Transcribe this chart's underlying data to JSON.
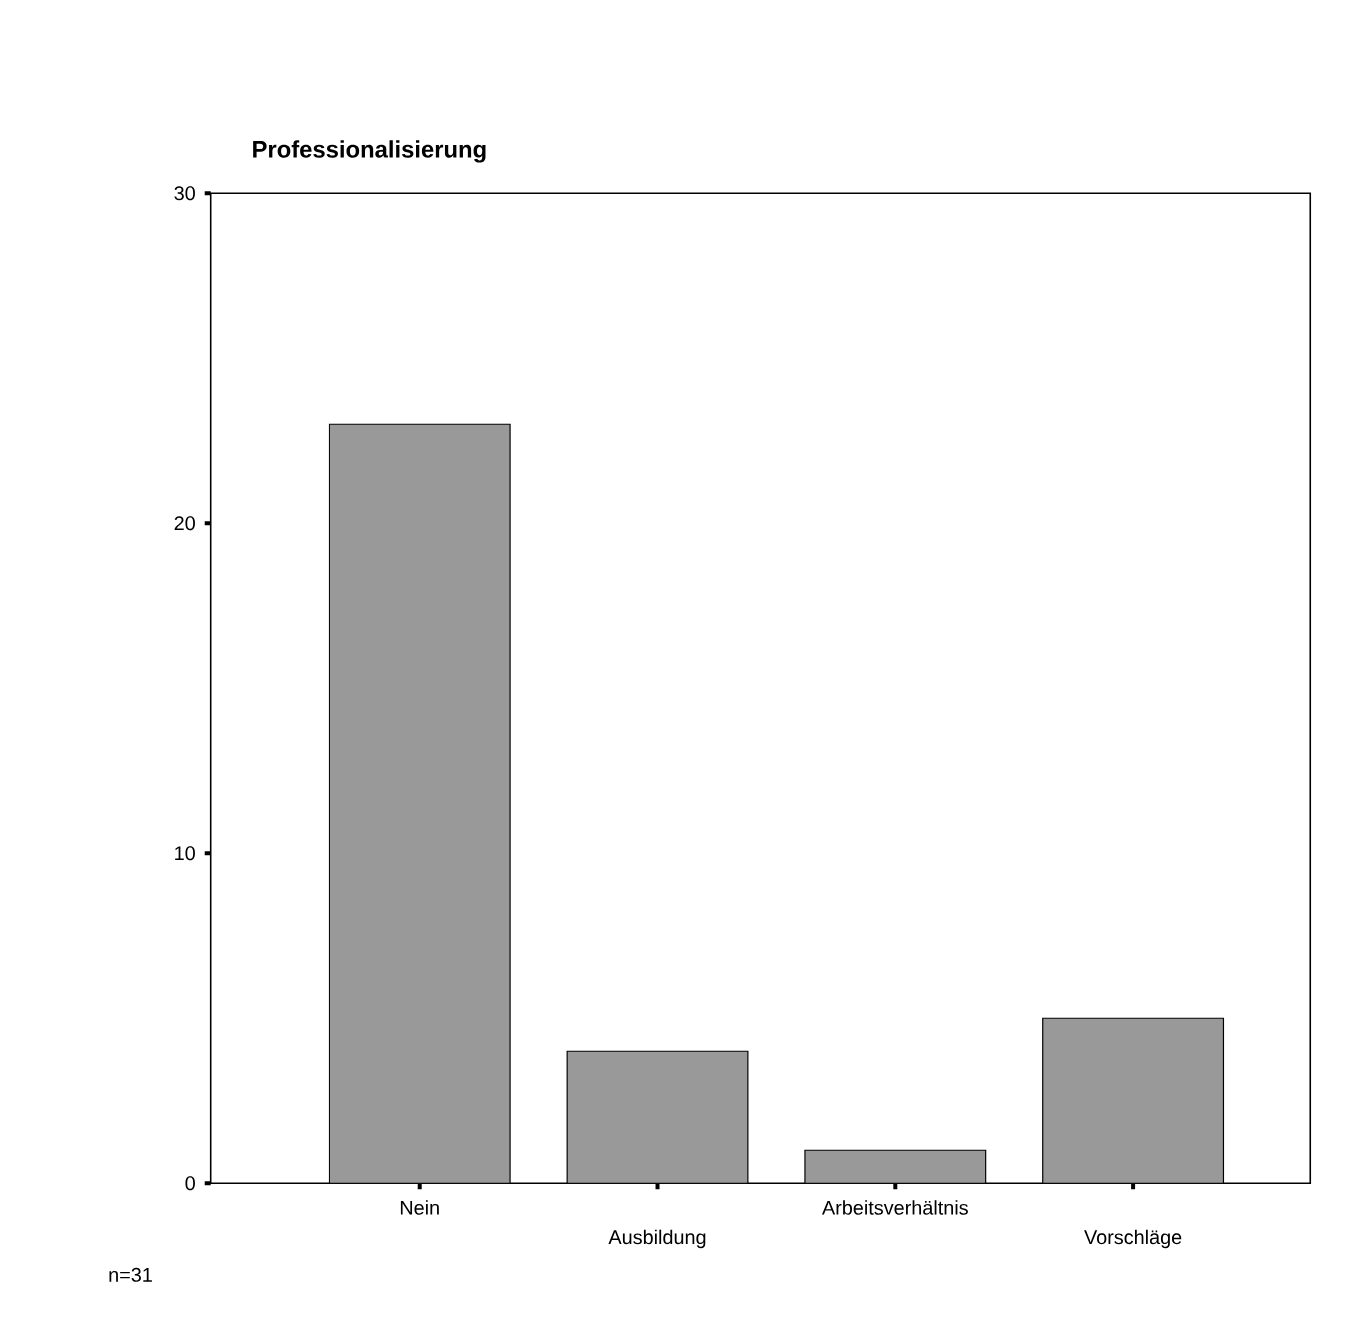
{
  "chart_data": {
    "type": "bar",
    "title": "Professionalisierung",
    "categories": [
      "Nein",
      "Ausbildung",
      "Arbeitsverhältnis",
      "Vorschläge"
    ],
    "values": [
      23,
      4,
      1,
      5
    ],
    "color": "#999999",
    "ylim": [
      0,
      30
    ],
    "yticks": [
      0,
      10,
      20,
      30
    ],
    "annotations": [
      "n=31"
    ]
  }
}
